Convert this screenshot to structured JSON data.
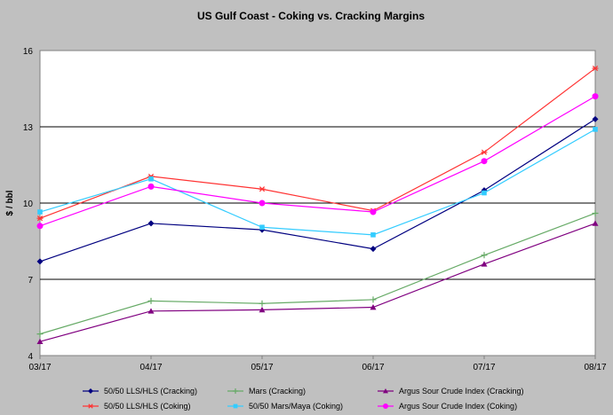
{
  "chart_data": {
    "type": "line",
    "title": "US Gulf Coast - Coking vs. Cracking Margins",
    "xlabel": "",
    "ylabel": "$ / bbl",
    "categories": [
      "03/17",
      "04/17",
      "05/17",
      "06/17",
      "07/17",
      "08/17"
    ],
    "ylim": [
      4,
      16
    ],
    "yticks": [
      4,
      7,
      10,
      13,
      16
    ],
    "grid": "horizontal major gridlines",
    "legend_position": "bottom",
    "series": [
      {
        "name": "50/50 LLS/HLS (Cracking)",
        "color": "#000080",
        "marker": "diamond",
        "values": [
          7.7,
          9.2,
          8.95,
          8.2,
          10.5,
          13.3
        ]
      },
      {
        "name": "Mars (Cracking)",
        "color": "#66aa66",
        "marker": "plus",
        "values": [
          4.85,
          6.15,
          6.05,
          6.2,
          7.95,
          9.6
        ]
      },
      {
        "name": "Argus Sour Crude Index (Cracking)",
        "color": "#800080",
        "marker": "triangle",
        "values": [
          4.55,
          5.75,
          5.8,
          5.9,
          7.6,
          9.2
        ]
      },
      {
        "name": "50/50 LLS/HLS (Coking)",
        "color": "#ff3333",
        "marker": "asterisk",
        "values": [
          9.4,
          11.05,
          10.55,
          9.7,
          12.0,
          15.3
        ]
      },
      {
        "name": "50/50 Mars/Maya (Coking)",
        "color": "#33ccff",
        "marker": "square",
        "values": [
          9.65,
          10.95,
          9.05,
          8.75,
          10.4,
          12.9
        ]
      },
      {
        "name": "Argus Sour Crude Index (Coking)",
        "color": "#ff00ff",
        "marker": "circle",
        "values": [
          9.1,
          10.65,
          10.0,
          9.65,
          11.65,
          14.2
        ]
      }
    ]
  }
}
